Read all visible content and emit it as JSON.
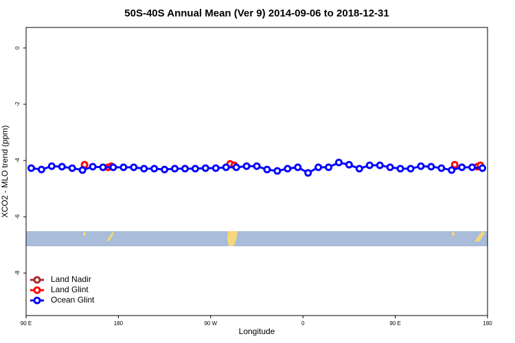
{
  "chart_data": {
    "type": "line",
    "title": "50S-40S Annual Mean (Ver 9)   2014-09-06 to 2018-12-31",
    "x_label": "Longitude",
    "y_label": "XCO2 - MLO trend (ppm)",
    "xlim": [
      90,
      540
    ],
    "ylim": [
      -9.51,
      0.73
    ],
    "xticks": [
      {
        "value": 90,
        "label": "90 E"
      },
      180,
      {
        "value": 270,
        "label": "90 W"
      },
      {
        "value": 360,
        "label": "0"
      },
      {
        "value": 450,
        "label": "90 E"
      },
      {
        "value": 540,
        "label": "180"
      }
    ],
    "yticks": [
      0,
      -2,
      -4,
      -6,
      -8
    ],
    "legend": "bottom-left",
    "series": [
      {
        "name": "Land Nadir",
        "color": "#a52a2a",
        "line": false,
        "x": [],
        "values": []
      },
      {
        "name": "Land Glint",
        "color": "#ff0000",
        "line": false,
        "x": [
          147,
          170,
          173,
          289,
          293,
          508,
          530,
          533
        ],
        "values": [
          -4.15,
          -4.24,
          -4.2,
          -4.12,
          -4.17,
          -4.15,
          -4.22,
          -4.17
        ]
      },
      {
        "name": "Ocean Glint",
        "color": "#0000ff",
        "line": true,
        "x": [
          95,
          105,
          115,
          125,
          135,
          145,
          155,
          165,
          175,
          185,
          195,
          205,
          215,
          225,
          235,
          245,
          255,
          265,
          275,
          285,
          295,
          305,
          315,
          325,
          335,
          345,
          355,
          365,
          375,
          385,
          395,
          405,
          415,
          425,
          435,
          445,
          455,
          465,
          475,
          485,
          495,
          505,
          515,
          525,
          535
        ],
        "values": [
          -4.27,
          -4.32,
          -4.2,
          -4.22,
          -4.27,
          -4.34,
          -4.22,
          -4.24,
          -4.24,
          -4.24,
          -4.24,
          -4.29,
          -4.29,
          -4.32,
          -4.29,
          -4.29,
          -4.29,
          -4.27,
          -4.27,
          -4.24,
          -4.24,
          -4.2,
          -4.2,
          -4.32,
          -4.37,
          -4.29,
          -4.24,
          -4.44,
          -4.24,
          -4.24,
          -4.07,
          -4.15,
          -4.29,
          -4.17,
          -4.17,
          -4.24,
          -4.29,
          -4.29,
          -4.2,
          -4.22,
          -4.27,
          -4.34,
          -4.24,
          -4.24,
          -4.27
        ]
      }
    ]
  }
}
